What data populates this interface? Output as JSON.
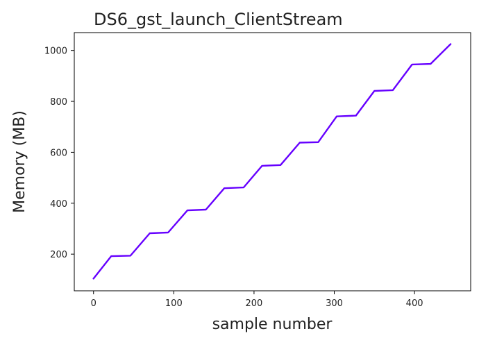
{
  "chart_data": {
    "type": "line",
    "title": "DS6_gst_launch_ClientStream",
    "xlabel": "sample number",
    "ylabel": "Memory (MB)",
    "xlim": [
      -24,
      470
    ],
    "ylim": [
      56,
      1070
    ],
    "xticks": [
      0,
      100,
      200,
      300,
      400
    ],
    "yticks": [
      200,
      400,
      600,
      800,
      1000
    ],
    "grid": false,
    "line_color": "#6600ff",
    "series": [
      {
        "x": [
          0,
          22,
          46,
          70,
          93,
          117,
          140,
          163,
          187,
          210,
          233,
          257,
          280,
          303,
          327,
          350,
          373,
          397,
          420,
          445
        ],
        "values": [
          104,
          192,
          194,
          282,
          285,
          372,
          375,
          459,
          462,
          547,
          550,
          638,
          640,
          741,
          744,
          841,
          844,
          945,
          947,
          1025
        ]
      }
    ]
  }
}
